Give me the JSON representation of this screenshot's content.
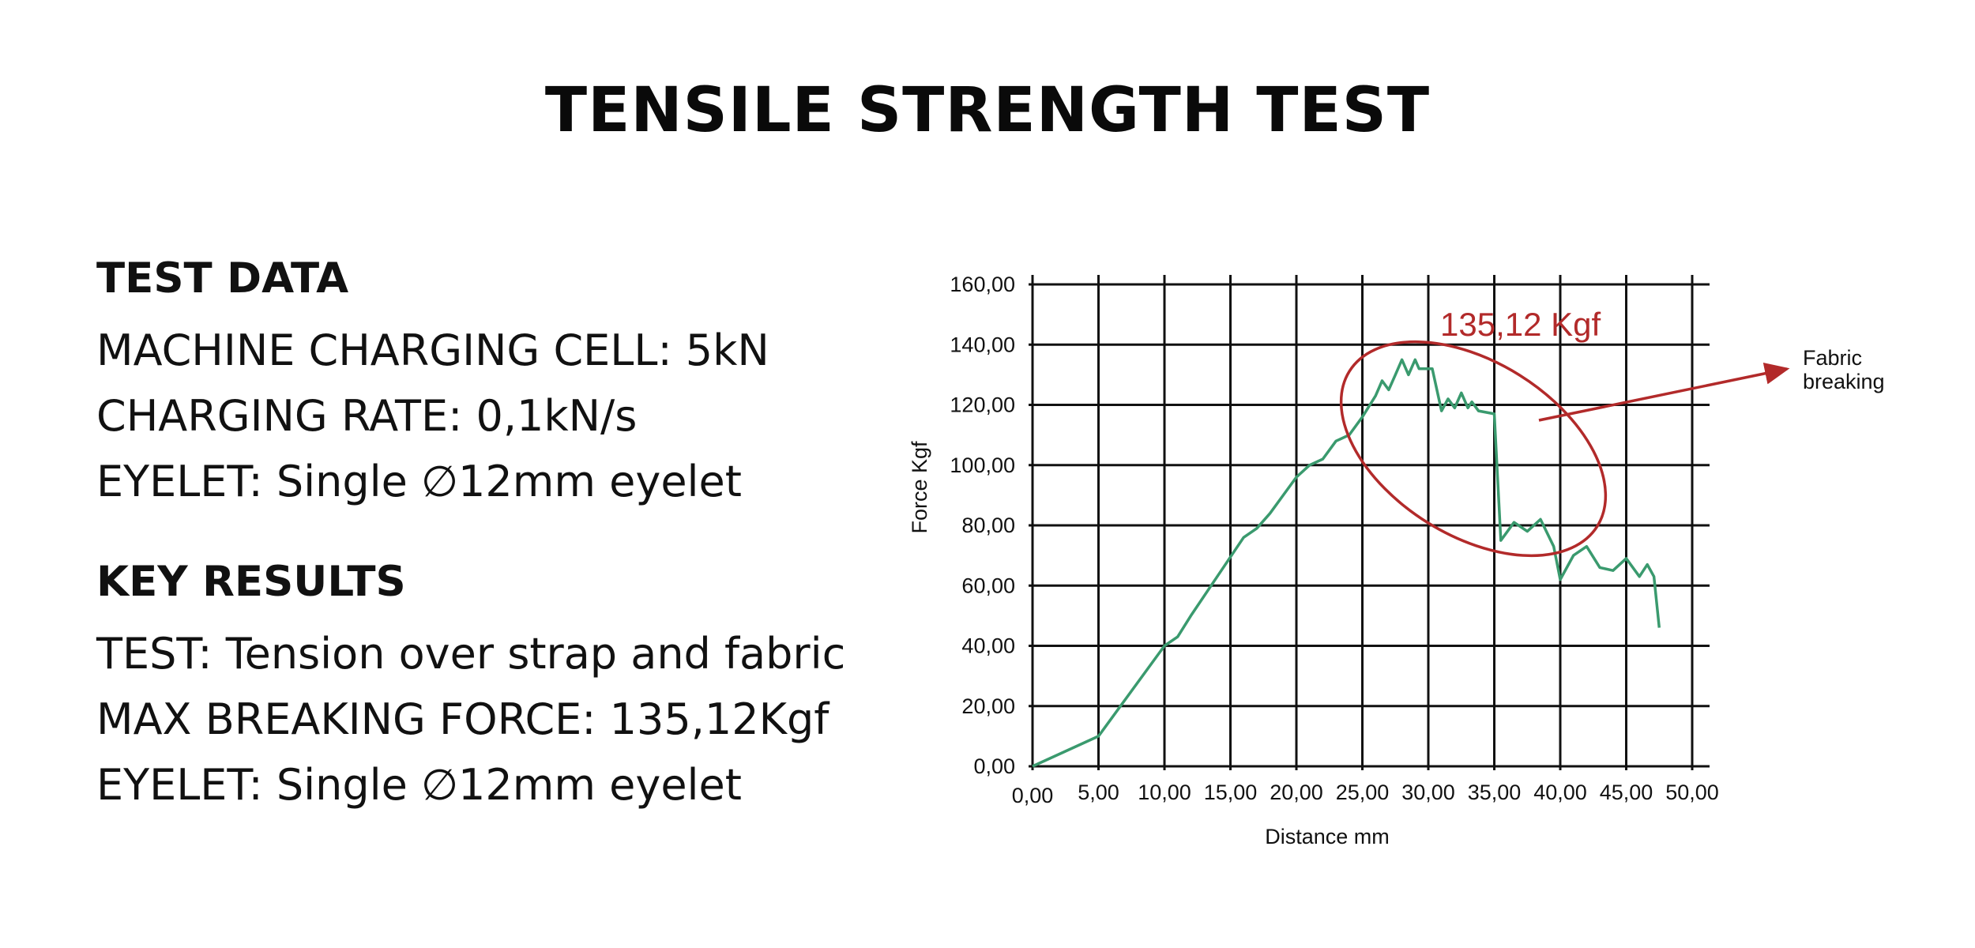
{
  "page_title": "TENSILE STRENGTH TEST",
  "test_data": {
    "heading": "TEST DATA",
    "lines": [
      "MACHINE CHARGING CELL: 5kN",
      "CHARGING RATE: 0,1kN/s",
      "EYELET: Single ∅12mm eyelet"
    ]
  },
  "key_results": {
    "heading": "KEY RESULTS",
    "lines": [
      "TEST: Tension over strap and fabric",
      "MAX BREAKING FORCE: 135,12Kgf",
      "EYELET: Single ∅12mm eyelet"
    ]
  },
  "chart_data": {
    "type": "line",
    "xlabel": "Distance mm",
    "ylabel": "Force Kgf",
    "xlim": [
      0,
      50
    ],
    "ylim": [
      0,
      160
    ],
    "x_ticks": [
      "0,00",
      "5,00",
      "10,00",
      "15,00",
      "20,00",
      "25,00",
      "30,00",
      "35,00",
      "40,00",
      "45,00",
      "50,00"
    ],
    "y_ticks": [
      "0,00",
      "20,00",
      "40,00",
      "60,00",
      "80,00",
      "100,00",
      "120,00",
      "140,00",
      "160,00"
    ],
    "grid": true,
    "line_color": "#3a9a6e",
    "annotation_color": "#b22a2a",
    "series": [
      {
        "x": [
          0,
          5,
          10,
          11,
          12,
          14,
          16,
          17,
          18,
          19,
          20,
          21,
          22,
          23,
          24,
          25,
          26,
          26.5,
          27,
          27.5,
          28,
          28.5,
          29,
          29.3,
          29.8,
          30.3,
          31,
          31.5,
          32,
          32.5,
          33,
          33.3,
          33.8,
          35,
          35.5,
          36.5,
          37.5,
          38,
          38.5,
          39.5,
          40,
          41,
          42,
          43,
          44,
          45,
          46,
          46.6,
          47.1,
          47.5
        ],
        "y": [
          0,
          10,
          40,
          43,
          50,
          63,
          76,
          79,
          84,
          90,
          96,
          100,
          102,
          108,
          110,
          116,
          123,
          128,
          125,
          130,
          135,
          130,
          135,
          132,
          132,
          132,
          118,
          122,
          119,
          124,
          119,
          121,
          118,
          117,
          75,
          81,
          78,
          80,
          82,
          73,
          62,
          70,
          73,
          66,
          65,
          69,
          63,
          67,
          63,
          46
        ]
      }
    ],
    "annotations": {
      "peak_label": "135,12 Kgf",
      "callout_label_1": "Fabric",
      "callout_label_2": "breaking"
    }
  }
}
